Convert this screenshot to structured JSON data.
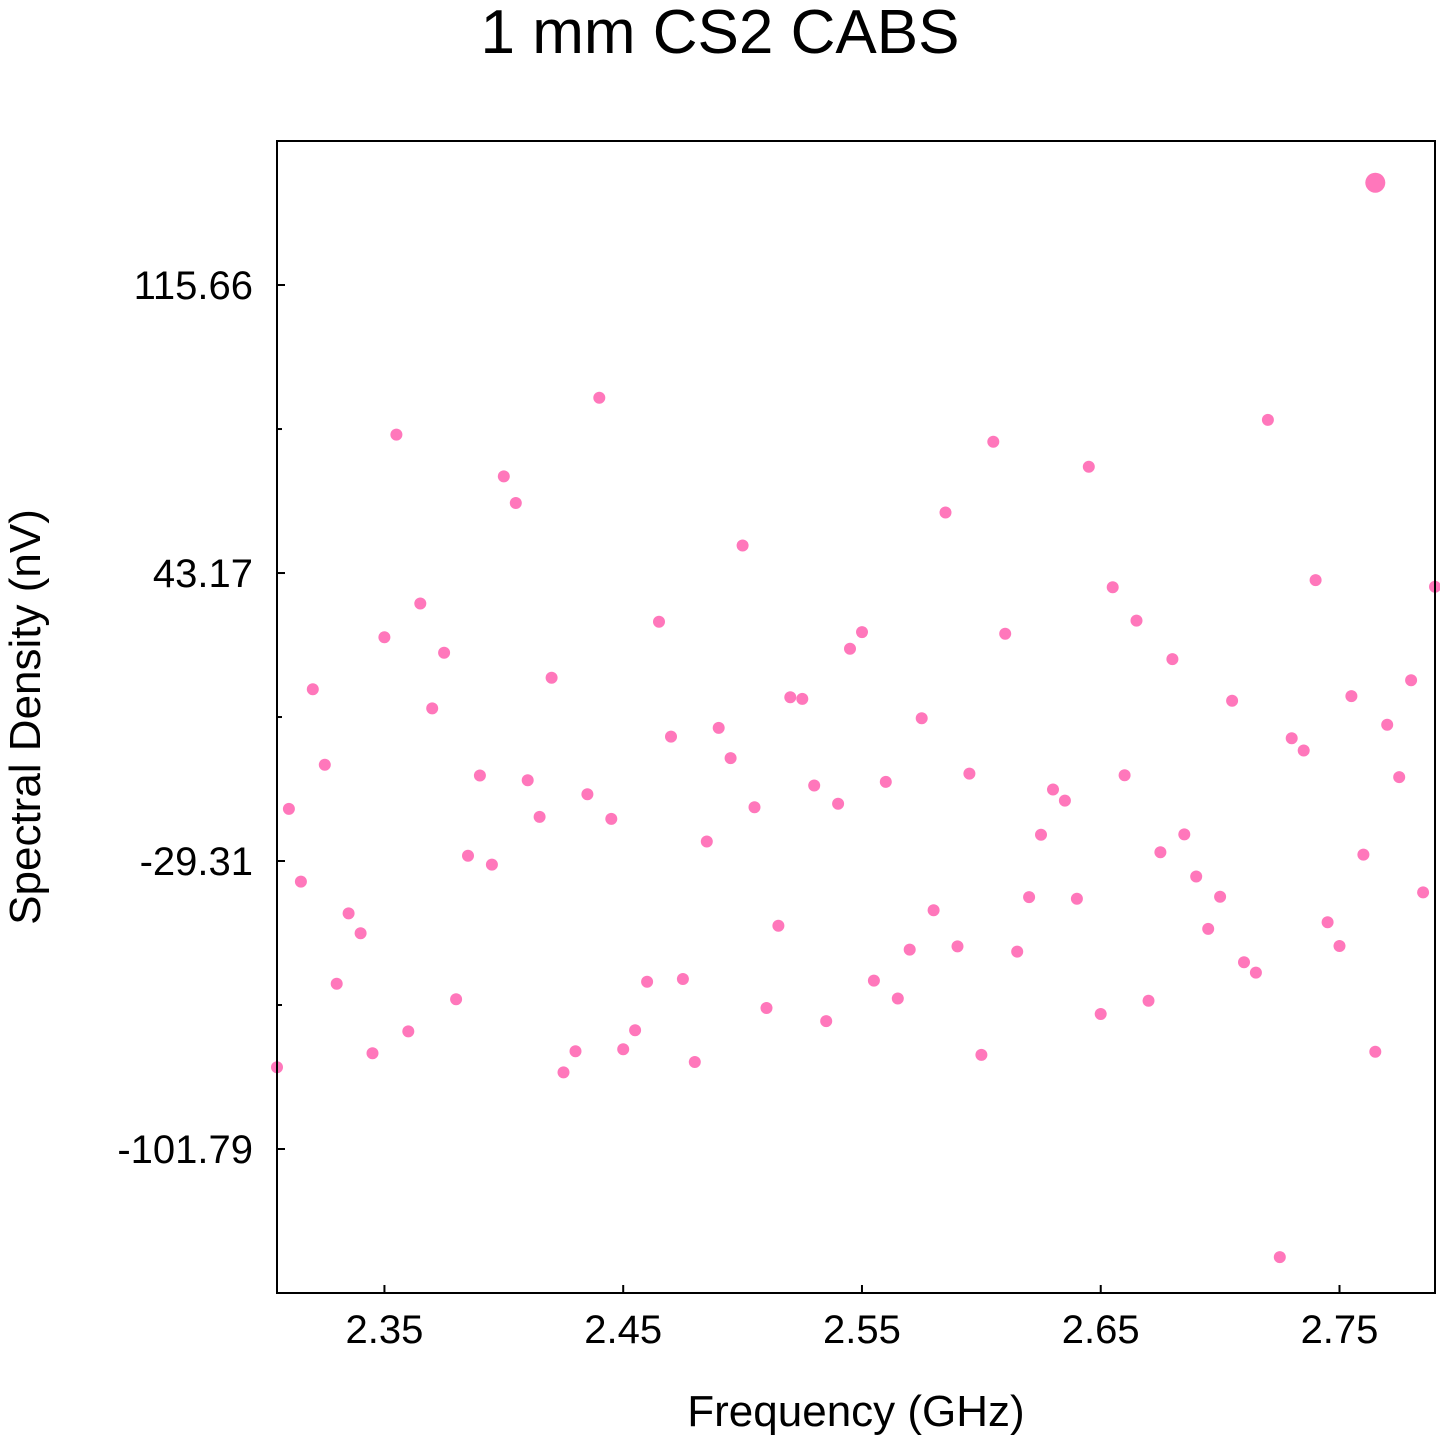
{
  "chart_data": {
    "type": "scatter",
    "title": "1 mm CS2 CABS",
    "xlabel": "Frequency (GHz)",
    "ylabel": "Spectral Density (nV)",
    "xlim": [
      2.305,
      2.79
    ],
    "ylim": [
      -138.03,
      151.9
    ],
    "x_ticks": [
      2.35,
      2.45,
      2.55,
      2.65,
      2.75
    ],
    "x_tick_labels": [
      "2.35",
      "2.45",
      "2.55",
      "2.65",
      "2.75"
    ],
    "y_ticks": [
      -101.79,
      -29.31,
      43.17,
      115.66
    ],
    "y_tick_labels": [
      "-101.79",
      "-29.31",
      "43.17",
      "115.66"
    ],
    "y_minor_ticks": [
      -65.55,
      6.93,
      79.41
    ],
    "grid": false,
    "legend": "none",
    "marker_color": "#ff77bb",
    "series": [
      {
        "points": [
          [
            2.305,
            -81.2
          ],
          [
            2.31,
            -16.2
          ],
          [
            2.315,
            -34.5
          ],
          [
            2.32,
            13.9
          ],
          [
            2.325,
            -5.1
          ],
          [
            2.33,
            -60.2
          ],
          [
            2.335,
            -42.5
          ],
          [
            2.34,
            -47.5
          ],
          [
            2.345,
            -77.7
          ],
          [
            2.35,
            27.0
          ],
          [
            2.355,
            78.0
          ],
          [
            2.36,
            -72.2
          ],
          [
            2.365,
            35.5
          ],
          [
            2.37,
            9.1
          ],
          [
            2.375,
            23.1
          ],
          [
            2.38,
            -64.1
          ],
          [
            2.385,
            -28.0
          ],
          [
            2.39,
            -7.8
          ],
          [
            2.395,
            -30.2
          ],
          [
            2.4,
            67.5
          ],
          [
            2.405,
            60.8
          ],
          [
            2.41,
            -9.0
          ],
          [
            2.415,
            -18.2
          ],
          [
            2.42,
            16.8
          ],
          [
            2.425,
            -82.5
          ],
          [
            2.43,
            -77.2
          ],
          [
            2.435,
            -12.5
          ],
          [
            2.44,
            87.3
          ],
          [
            2.445,
            -18.7
          ],
          [
            2.45,
            -76.7
          ],
          [
            2.455,
            -71.9
          ],
          [
            2.46,
            -59.7
          ],
          [
            2.465,
            30.9
          ],
          [
            2.47,
            2.0
          ],
          [
            2.475,
            -59.0
          ],
          [
            2.48,
            -79.9
          ],
          [
            2.485,
            -24.4
          ],
          [
            2.49,
            4.2
          ],
          [
            2.495,
            -3.4
          ],
          [
            2.5,
            50.1
          ],
          [
            2.505,
            -15.8
          ],
          [
            2.51,
            -66.3
          ],
          [
            2.515,
            -45.6
          ],
          [
            2.52,
            11.9
          ],
          [
            2.525,
            11.5
          ],
          [
            2.53,
            -10.3
          ],
          [
            2.535,
            -69.6
          ],
          [
            2.54,
            -14.9
          ],
          [
            2.545,
            24.1
          ],
          [
            2.55,
            28.3
          ],
          [
            2.555,
            -59.4
          ],
          [
            2.56,
            -9.4
          ],
          [
            2.565,
            -63.9
          ],
          [
            2.57,
            -51.6
          ],
          [
            2.575,
            6.6
          ],
          [
            2.58,
            -41.7
          ],
          [
            2.585,
            58.4
          ],
          [
            2.59,
            -50.8
          ],
          [
            2.595,
            -7.3
          ],
          [
            2.6,
            -78.1
          ],
          [
            2.605,
            76.2
          ],
          [
            2.61,
            27.9
          ],
          [
            2.615,
            -52.1
          ],
          [
            2.62,
            -38.4
          ],
          [
            2.625,
            -22.7
          ],
          [
            2.63,
            -11.3
          ],
          [
            2.635,
            -14.1
          ],
          [
            2.64,
            -38.8
          ],
          [
            2.645,
            69.9
          ],
          [
            2.65,
            -67.8
          ],
          [
            2.655,
            39.6
          ],
          [
            2.66,
            -7.7
          ],
          [
            2.665,
            31.2
          ],
          [
            2.67,
            -64.5
          ],
          [
            2.675,
            -27.1
          ],
          [
            2.68,
            21.5
          ],
          [
            2.685,
            -22.6
          ],
          [
            2.69,
            -33.2
          ],
          [
            2.695,
            -46.4
          ],
          [
            2.7,
            -38.3
          ],
          [
            2.705,
            11.0
          ],
          [
            2.71,
            -54.8
          ],
          [
            2.715,
            -57.4
          ],
          [
            2.72,
            81.7
          ],
          [
            2.725,
            -129.0
          ],
          [
            2.73,
            1.6
          ],
          [
            2.735,
            -1.5
          ],
          [
            2.74,
            41.4
          ],
          [
            2.745,
            -44.7
          ],
          [
            2.75,
            -50.7
          ],
          [
            2.755,
            12.2
          ],
          [
            2.76,
            -27.7
          ],
          [
            2.765,
            -77.3
          ],
          [
            2.77,
            5.0
          ],
          [
            2.775,
            -8.2
          ],
          [
            2.78,
            16.2
          ],
          [
            2.785,
            -37.2
          ],
          [
            2.79,
            39.7
          ]
        ]
      }
    ],
    "highlight_point": [
      2.765,
      141.4
    ]
  }
}
